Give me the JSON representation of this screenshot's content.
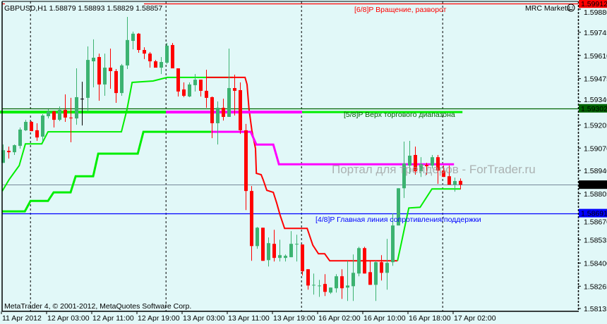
{
  "header": {
    "symbol_line": "GBPUSD,H1  1.58879 1.58893 1.58829 1.58857",
    "broker": "MRC Markets",
    "broker_icon": "smiley-face-icon",
    "copyright": "MetaTrader 4, © 2001-2012, MetaQuotes Software Corp.",
    "watermark": "Портал для трейдеров - ForTrader.ru"
  },
  "colors": {
    "background": "#e1f8f8",
    "bull": "#3cb371",
    "bear": "#ff0000",
    "channel": "#00ee00",
    "channel_down": "#ff0000",
    "support_highlight": "#ff00ff",
    "level_6_8": "#ff0000",
    "level_5_8": "#006400",
    "level_4_8": "#0000ff",
    "bid": "#778899"
  },
  "chart_data": {
    "type": "candlestick",
    "symbol": "GBPUSD",
    "timeframe": "H1",
    "grid": false,
    "ylim": [
      1.58135,
      1.59912
    ],
    "y_ticks": [
      "1.59880",
      "1.59745",
      "1.59610",
      "1.59475",
      "1.59340",
      "1.59205",
      "1.59070",
      "1.58940",
      "1.58805",
      "1.58670",
      "1.58535",
      "1.58400",
      "1.58265",
      "1.58135"
    ],
    "x_ticks": [
      "11 Apr 2012",
      "12 Apr 03:00",
      "12 Apr 11:00",
      "12 Apr 19:00",
      "13 Apr 03:00",
      "13 Apr 11:00",
      "13 Apr 19:00",
      "16 Apr 02:00",
      "16 Apr 10:00",
      "16 Apr 18:00",
      "17 Apr 02:00"
    ],
    "x_tick_every_bars": 8,
    "period_separators_bar": [
      5.9,
      29.9,
      53.9,
      78.9
    ],
    "ohlc": [
      [
        1.58984,
        1.59091,
        1.58984,
        1.59058
      ],
      [
        1.59054,
        1.59079,
        1.59009,
        1.59046
      ],
      [
        1.59046,
        1.59091,
        1.5903,
        1.59087
      ],
      [
        1.59083,
        1.5919,
        1.59067,
        1.59178
      ],
      [
        1.59174,
        1.59235,
        1.59169,
        1.59223
      ],
      [
        1.59223,
        1.59227,
        1.59169,
        1.59169
      ],
      [
        1.59174,
        1.59215,
        1.59112,
        1.59132
      ],
      [
        1.59137,
        1.59268,
        1.59112,
        1.5926
      ],
      [
        1.59256,
        1.59297,
        1.59243,
        1.59284
      ],
      [
        1.59284,
        1.59289,
        1.5919,
        1.59235
      ],
      [
        1.59235,
        1.59313,
        1.59227,
        1.59293
      ],
      [
        1.59293,
        1.59383,
        1.59223,
        1.59248
      ],
      [
        1.59248,
        1.59363,
        1.59104,
        1.59246
      ],
      [
        1.59243,
        1.59535,
        1.59206,
        1.59367
      ],
      [
        1.59358,
        1.59457,
        1.59202,
        1.59358
      ],
      [
        1.59363,
        1.59663,
        1.59284,
        1.59584
      ],
      [
        1.59576,
        1.59704,
        1.59424,
        1.59597
      ],
      [
        1.59601,
        1.59621,
        1.59346,
        1.59441
      ],
      [
        1.59441,
        1.59621,
        1.59375,
        1.59539
      ],
      [
        1.59539,
        1.5965,
        1.59416,
        1.59519
      ],
      [
        1.59519,
        1.59531,
        1.59334,
        1.59391
      ],
      [
        1.59391,
        1.5956,
        1.59375,
        1.59552
      ],
      [
        1.59552,
        1.59835,
        1.59531,
        1.597
      ],
      [
        1.59695,
        1.59749,
        1.59646,
        1.59737
      ],
      [
        1.59737,
        1.59741,
        1.59626,
        1.59642
      ],
      [
        1.59642,
        1.59658,
        1.59589,
        1.59621
      ],
      [
        1.59621,
        1.5963,
        1.59539,
        1.59576
      ],
      [
        1.59576,
        1.59584,
        1.59539,
        1.59539
      ],
      [
        1.59539,
        1.59601,
        1.59502,
        1.59572
      ],
      [
        1.59568,
        1.59683,
        1.5956,
        1.59667
      ],
      [
        1.59671,
        1.59683,
        1.59535,
        1.59535
      ],
      [
        1.59535,
        1.59535,
        1.59371,
        1.594
      ],
      [
        1.59412,
        1.59453,
        1.59367,
        1.59375
      ],
      [
        1.59371,
        1.59453,
        1.59367,
        1.59441
      ],
      [
        1.59437,
        1.59502,
        1.594,
        1.59469
      ],
      [
        1.59469,
        1.59469,
        1.59371,
        1.59404
      ],
      [
        1.59404,
        1.59527,
        1.59305,
        1.59363
      ],
      [
        1.59367,
        1.59371,
        1.59128,
        1.59215
      ],
      [
        1.59215,
        1.59342,
        1.59091,
        1.59305
      ],
      [
        1.59305,
        1.59358,
        1.59231,
        1.59252
      ],
      [
        1.59252,
        1.5965,
        1.59252,
        1.5942
      ],
      [
        1.5942,
        1.59498,
        1.5926,
        1.59404
      ],
      [
        1.59408,
        1.59453,
        1.59153,
        1.59174
      ],
      [
        1.59174,
        1.59211,
        1.58709,
        1.5882
      ],
      [
        1.5882,
        1.58849,
        1.58413,
        1.58499
      ],
      [
        1.58499,
        1.5861,
        1.58483,
        1.58606
      ],
      [
        1.58606,
        1.58606,
        1.58413,
        1.58413
      ],
      [
        1.58417,
        1.58549,
        1.5838,
        1.58516
      ],
      [
        1.58512,
        1.58594,
        1.58409,
        1.5843
      ],
      [
        1.5843,
        1.58536,
        1.58409,
        1.58446
      ],
      [
        1.5843,
        1.5845,
        1.58409,
        1.58442
      ],
      [
        1.58434,
        1.58586,
        1.58434,
        1.58512
      ],
      [
        1.58508,
        1.58565,
        1.58409,
        1.58512
      ],
      [
        1.58508,
        1.58508,
        1.58327,
        1.58352
      ],
      [
        1.58364,
        1.58364,
        1.58245,
        1.58269
      ],
      [
        1.58269,
        1.58339,
        1.58216,
        1.58273
      ],
      [
        1.58265,
        1.58302,
        1.58203,
        1.58269
      ],
      [
        1.58278,
        1.58335,
        1.58208,
        1.58232
      ],
      [
        1.58228,
        1.58257,
        1.5822,
        1.58257
      ],
      [
        1.58253,
        1.58335,
        1.58228,
        1.58323
      ],
      [
        1.58323,
        1.58364,
        1.58191,
        1.58253
      ],
      [
        1.58257,
        1.58413,
        1.58179,
        1.58269
      ],
      [
        1.58265,
        1.5845,
        1.58179,
        1.58343
      ],
      [
        1.58339,
        1.58495,
        1.58323,
        1.58487
      ],
      [
        1.58487,
        1.58495,
        1.58339,
        1.58339
      ],
      [
        1.58347,
        1.58413,
        1.58273,
        1.58273
      ],
      [
        1.58273,
        1.58413,
        1.58179,
        1.58405
      ],
      [
        1.58405,
        1.58446,
        1.58298,
        1.58343
      ],
      [
        1.58343,
        1.58541,
        1.58245,
        1.58401
      ],
      [
        1.58405,
        1.58689,
        1.58384,
        1.58619
      ],
      [
        1.58619,
        1.58836,
        1.58619,
        1.58836
      ],
      [
        1.58836,
        1.59108,
        1.58779,
        1.5898
      ],
      [
        1.58968,
        1.59112,
        1.58919,
        1.59026
      ],
      [
        1.5903,
        1.59079,
        1.58915,
        1.58935
      ],
      [
        1.58935,
        1.59017,
        1.58902,
        1.58976
      ],
      [
        1.58972,
        1.58984,
        1.58915,
        1.58964
      ],
      [
        1.58968,
        1.5903,
        1.58951,
        1.59017
      ],
      [
        1.59017,
        1.5903,
        1.58861,
        1.58939
      ],
      [
        1.58939,
        1.58968,
        1.58902,
        1.58902
      ],
      [
        1.58906,
        1.58968,
        1.58857,
        1.58857
      ],
      [
        1.58857,
        1.58898,
        1.58816,
        1.58878
      ],
      [
        1.58879,
        1.58893,
        1.58829,
        1.58857
      ]
    ],
    "indicator_lines": [
      {
        "color_key": "channel",
        "width": 2,
        "points": [
          [
            0.9,
            1.5882
          ],
          [
            2.1,
            1.58886
          ],
          [
            3.9,
            1.58968
          ],
          [
            5,
            1.59095
          ],
          [
            7.9,
            1.59095
          ],
          [
            9,
            1.59165
          ],
          [
            22,
            1.59165
          ],
          [
            23,
            1.59297
          ],
          [
            23.9,
            1.59453
          ],
          [
            27.6,
            1.59461
          ],
          [
            30.1,
            1.59482
          ],
          [
            41.75,
            1.59482
          ]
        ]
      },
      {
        "color_key": "channel_down",
        "width": 2,
        "points": [
          [
            37,
            1.59482
          ],
          [
            43.9,
            1.59482
          ],
          [
            44.25,
            1.59441
          ],
          [
            44.6,
            1.59297
          ],
          [
            45.1,
            1.59174
          ],
          [
            45.75,
            1.59067
          ],
          [
            45.9,
            1.58923
          ],
          [
            46.75,
            1.58915
          ],
          [
            47.1,
            1.58886
          ],
          [
            47.75,
            1.58824
          ],
          [
            48.9,
            1.58812
          ],
          [
            49.5,
            1.5875
          ],
          [
            50.1,
            1.5868
          ],
          [
            50.9,
            1.58602
          ],
          [
            54.9,
            1.58602
          ],
          [
            55.9,
            1.58504
          ],
          [
            56.9,
            1.58454
          ],
          [
            58,
            1.58454
          ],
          [
            58.9,
            1.58413
          ],
          [
            70.9,
            1.58413
          ]
        ]
      },
      {
        "color_key": "channel",
        "width": 2,
        "points": [
          [
            70.9,
            1.58413
          ],
          [
            71.5,
            1.58504
          ],
          [
            72.1,
            1.58598
          ],
          [
            72.9,
            1.58721
          ],
          [
            74.9,
            1.58725
          ],
          [
            77,
            1.58832
          ],
          [
            82,
            1.58832
          ]
        ]
      },
      {
        "color_key": "channel",
        "width": 3,
        "points": [
          [
            0.9,
            1.58701
          ],
          [
            4.9,
            1.58701
          ],
          [
            5.9,
            1.58762
          ],
          [
            9,
            1.58762
          ],
          [
            10,
            1.58812
          ],
          [
            13,
            1.58812
          ],
          [
            13.9,
            1.58906
          ],
          [
            17,
            1.58906
          ],
          [
            17.9,
            1.59038
          ],
          [
            24.9,
            1.59038
          ],
          [
            25.9,
            1.59165
          ],
          [
            37.9,
            1.59165
          ]
        ]
      },
      {
        "color_key": "support_highlight",
        "width": 3,
        "points": [
          [
            37.9,
            1.59165
          ],
          [
            44.9,
            1.59165
          ],
          [
            45.9,
            1.59091
          ],
          [
            48.9,
            1.59091
          ],
          [
            49.9,
            1.58976
          ],
          [
            80.9,
            1.58976
          ]
        ]
      },
      {
        "color_key": "channel",
        "width": 4,
        "points": [
          [
            0.5,
            1.5928
          ],
          [
            29.9,
            1.5928
          ]
        ]
      },
      {
        "color_key": "support_highlight",
        "width": 4,
        "points": [
          [
            29.9,
            1.5928
          ],
          [
            54,
            1.5928
          ]
        ]
      },
      {
        "color_key": "channel",
        "width": 3,
        "points": [
          [
            54,
            1.5928
          ],
          [
            82.4,
            1.5928
          ]
        ]
      }
    ],
    "levels": [
      {
        "label": "[6/8]P Вращение, разворот",
        "price": 1.59912,
        "price_label": "1.59912",
        "color_key": "level_6_8",
        "from_bar": 26
      },
      {
        "label": "[5/8]P Верх торгового диапазона",
        "price": 1.59302,
        "price_label": "1.59302",
        "color_key": "level_5_8",
        "from_bar": 0
      },
      {
        "label": "[4/8]P Главная линия сопротивления/поддержки",
        "price": 1.58691,
        "price_label": "1.58691",
        "color_key": "level_4_8",
        "from_bar": 0
      }
    ],
    "bid": {
      "price": 1.58857,
      "price_label": "1.58857"
    }
  }
}
